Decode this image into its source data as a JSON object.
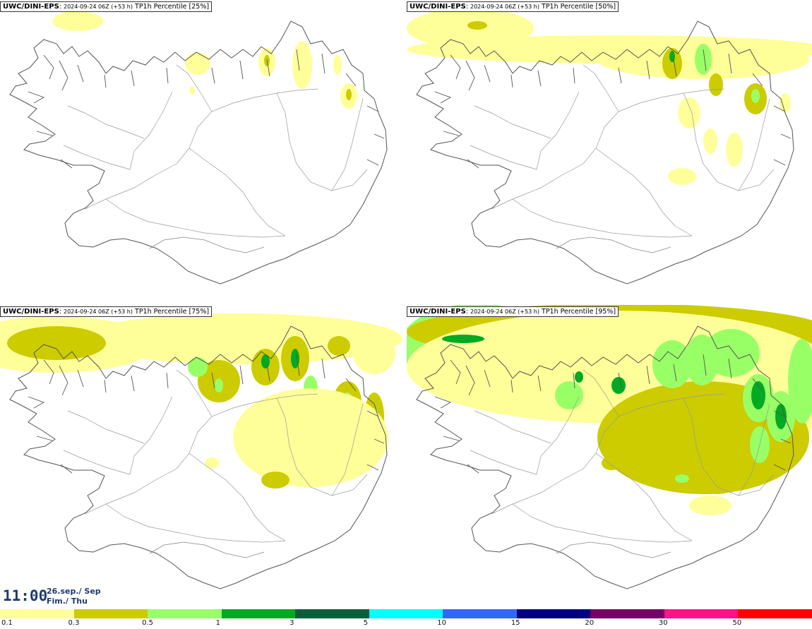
{
  "panels": [
    {
      "source": "UWC/DINI-EPS",
      "run": "2024-09-24 06Z (+53 h)",
      "product": "TP1h Percentile [25%]",
      "coverage": "light"
    },
    {
      "source": "UWC/DINI-EPS",
      "run": "2024-09-24 06Z (+53 h)",
      "product": "TP1h Percentile [50%]",
      "coverage": "moderate"
    },
    {
      "source": "UWC/DINI-EPS",
      "run": "2024-09-24 06Z (+53 h)",
      "product": "TP1h Percentile [75%]",
      "coverage": "heavy"
    },
    {
      "source": "UWC/DINI-EPS",
      "run": "2024-09-24 06Z (+53 h)",
      "product": "TP1h Percentile [95%]",
      "coverage": "extreme"
    }
  ],
  "valid_time": {
    "hour": "11:00",
    "date": "26.sep./ Sep",
    "day": "Fim./ Thu"
  },
  "legend": {
    "colors": [
      "#ffff99",
      "#cccc00",
      "#99ff66",
      "#00aa22",
      "#0a5e3a",
      "#00ffff",
      "#3366ff",
      "#000080",
      "#770066",
      "#ff1188",
      "#ff0000"
    ],
    "labels": [
      "0.1",
      "0.3",
      "0.5",
      "1",
      "3",
      "5",
      "10",
      "15",
      "20",
      "30",
      "50"
    ]
  },
  "colors": {
    "yellow": "#ffff99",
    "olive": "#cccc00",
    "light_green": "#99ff66",
    "green": "#00aa22",
    "coast": "#555555"
  }
}
